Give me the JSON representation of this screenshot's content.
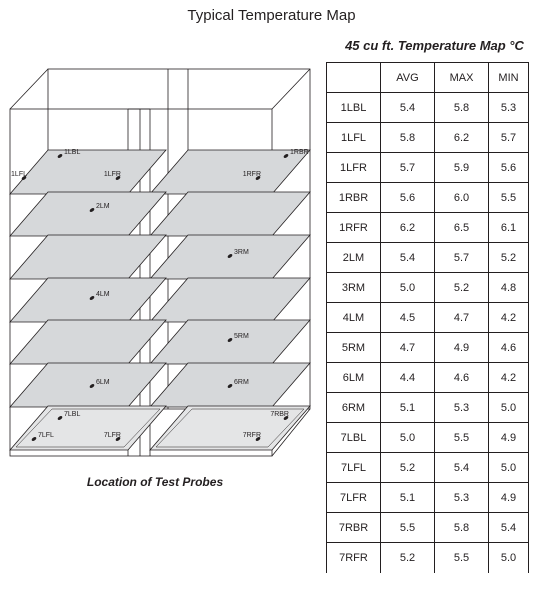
{
  "title": "Typical Temperature Map",
  "table": {
    "title": "45 cu ft. Temperature Map °C",
    "headers": [
      "",
      "AVG",
      "MAX",
      "MIN"
    ],
    "rows": [
      [
        "1LBL",
        "5.4",
        "5.8",
        "5.3"
      ],
      [
        "1LFL",
        "5.8",
        "6.2",
        "5.7"
      ],
      [
        "1LFR",
        "5.7",
        "5.9",
        "5.6"
      ],
      [
        "1RBR",
        "5.6",
        "6.0",
        "5.5"
      ],
      [
        "1RFR",
        "6.2",
        "6.5",
        "6.1"
      ],
      [
        "2LM",
        "5.4",
        "5.7",
        "5.2"
      ],
      [
        "3RM",
        "5.0",
        "5.2",
        "4.8"
      ],
      [
        "4LM",
        "4.5",
        "4.7",
        "4.2"
      ],
      [
        "5RM",
        "4.7",
        "4.9",
        "4.6"
      ],
      [
        "6LM",
        "4.4",
        "4.6",
        "4.2"
      ],
      [
        "6RM",
        "5.1",
        "5.3",
        "5.0"
      ],
      [
        "7LBL",
        "5.0",
        "5.5",
        "4.9"
      ],
      [
        "7LFL",
        "5.2",
        "5.4",
        "5.0"
      ],
      [
        "7LFR",
        "5.1",
        "5.3",
        "4.9"
      ],
      [
        "7RBR",
        "5.5",
        "5.8",
        "5.4"
      ],
      [
        "7RFR",
        "5.2",
        "5.5",
        "5.0"
      ]
    ]
  },
  "diagram": {
    "caption": "Location of Test Probes",
    "probes": [
      "1LBL",
      "1LFL",
      "1LFR",
      "1RBR",
      "1RFR",
      "2LM",
      "3RM",
      "4LM",
      "5RM",
      "6LM",
      "6RM",
      "7LBL",
      "7LFL",
      "7LFR",
      "7RBR",
      "7RFR"
    ]
  }
}
